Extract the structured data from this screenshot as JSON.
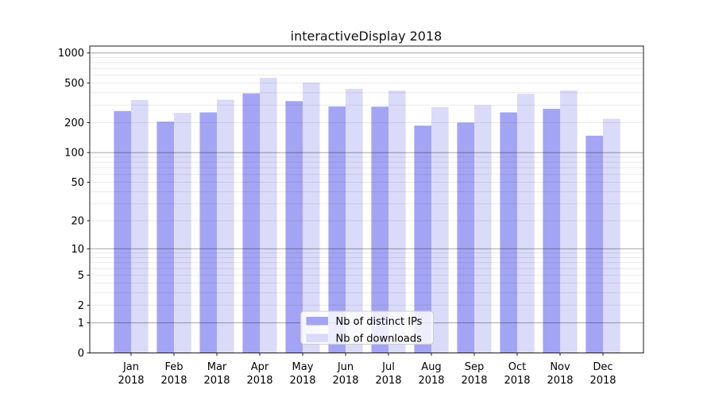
{
  "chart_data": {
    "type": "bar",
    "title": "interactiveDisplay 2018",
    "categories": [
      "Jan 2018",
      "Feb 2018",
      "Mar 2018",
      "Apr 2018",
      "May 2018",
      "Jun 2018",
      "Jul 2018",
      "Aug 2018",
      "Sep 2018",
      "Oct 2018",
      "Nov 2018",
      "Dec 2018"
    ],
    "series": [
      {
        "name": "Nb of distinct IPs",
        "color": "#a4a4f4",
        "values": [
          262,
          205,
          254,
          394,
          330,
          291,
          290,
          187,
          201,
          254,
          276,
          148
        ]
      },
      {
        "name": "Nb of downloads",
        "color": "#dadaf9",
        "values": [
          338,
          251,
          340,
          562,
          506,
          438,
          420,
          287,
          300,
          390,
          422,
          219
        ]
      }
    ],
    "yscale": "log1p",
    "ylim": [
      0,
      1200
    ],
    "y_ticks": [
      1000,
      500,
      200,
      100,
      50,
      20,
      10,
      5,
      2,
      1,
      0
    ],
    "grid": {
      "major_lines": [
        1,
        10,
        100,
        1000
      ],
      "minor_lines": [
        2,
        3,
        4,
        5,
        6,
        7,
        8,
        9,
        20,
        30,
        40,
        50,
        60,
        70,
        80,
        90,
        200,
        300,
        400,
        500,
        600,
        700,
        800,
        900
      ]
    },
    "legend": {
      "position": "lower center",
      "entries": [
        "Nb of distinct IPs",
        "Nb of downloads"
      ]
    }
  },
  "style": {
    "background": "#ffffff",
    "axis_color": "#1a1a1a",
    "text_color": "#000000",
    "major_grid_color": "rgba(0,0,0,0.35)",
    "minor_grid_color": "rgba(0,0,0,0.08)",
    "legend_bg": "rgba(255,255,255,0.8)",
    "legend_border": "#cccccc"
  }
}
